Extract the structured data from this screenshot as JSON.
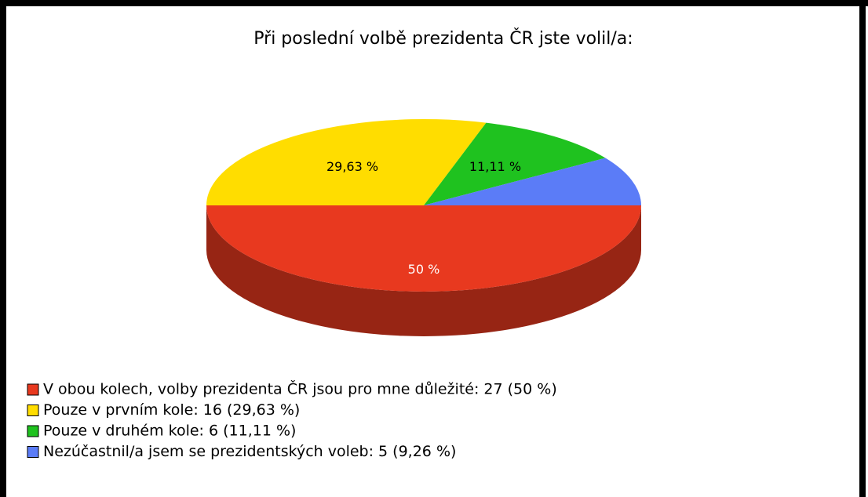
{
  "chart_data": {
    "type": "pie3d",
    "title": "Při poslední volbě prezidenta ČR jste volil/a:",
    "categories": [
      "V obou kolech, volby prezidenta ČR jsou pro mne důležité: 27 (50 %)",
      "Pouze v prvním kole: 16 (29,63 %)",
      "Pouze v druhém kole: 6 (11,11 %)",
      "Nezúčastnil/a jsem se prezidentských voleb: 5 (9,26 %)"
    ],
    "values": [
      50,
      29.63,
      11.11,
      9.26
    ],
    "value_labels": [
      "50 %",
      "29,63 %",
      "11,11 %",
      null
    ],
    "colors": [
      "#e8391f",
      "#ffdd00",
      "#1fc21f",
      "#5b7cf7"
    ],
    "legend": "bottom-left"
  }
}
